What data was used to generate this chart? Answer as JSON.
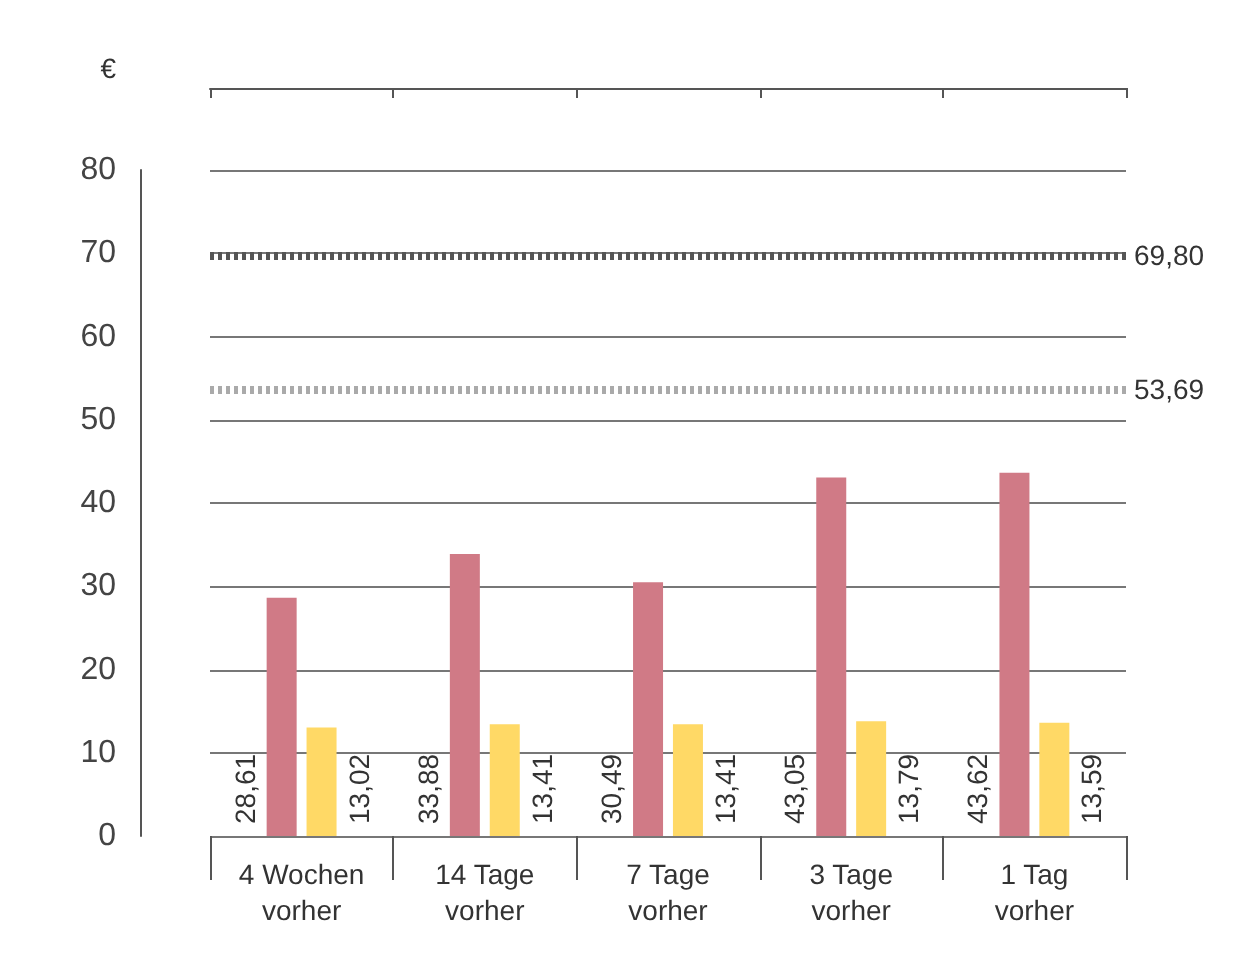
{
  "chart_data": {
    "type": "bar",
    "ylabel": "€",
    "categories": [
      "4 Wochen\nvorher",
      "14 Tage\nvorher",
      "7 Tage\nvorher",
      "3 Tage\nvorher",
      "1 Tag\nvorher"
    ],
    "series": [
      {
        "color": "#d07a86",
        "values": [
          28.61,
          33.88,
          30.49,
          43.05,
          43.62
        ],
        "value_labels": [
          "28,61",
          "33,88",
          "30,49",
          "43,05",
          "43,62"
        ]
      },
      {
        "color": "#ffd966",
        "values": [
          13.02,
          13.41,
          13.41,
          13.79,
          13.59
        ],
        "value_labels": [
          "13,02",
          "13,41",
          "13,41",
          "13,79",
          "13,59"
        ]
      }
    ],
    "ylim": [
      0,
      80
    ],
    "yticks": [
      0,
      10,
      20,
      30,
      40,
      50,
      60,
      70,
      80
    ],
    "grid": "y",
    "ref_lines": [
      {
        "axis": "y",
        "value": 69.8,
        "label": "69,80",
        "color": "#555555",
        "line_style": "dotted"
      },
      {
        "axis": "y",
        "value": 53.69,
        "label": "53,69",
        "color": "#aaaaaa",
        "line_style": "dotted"
      }
    ]
  }
}
